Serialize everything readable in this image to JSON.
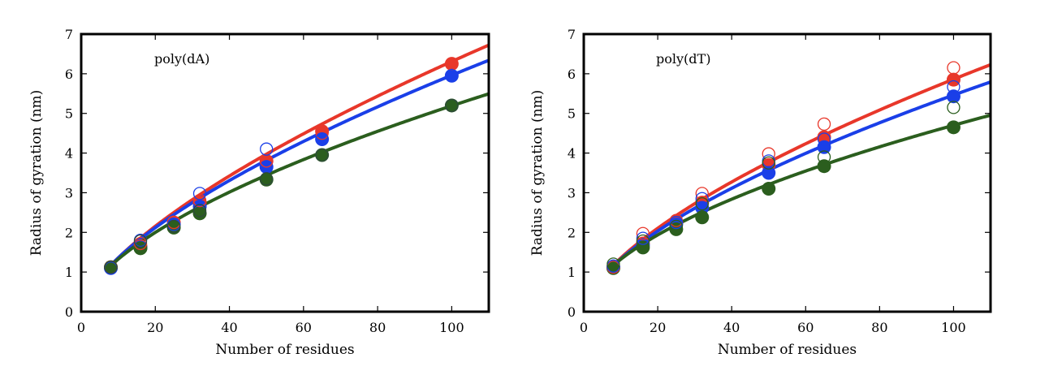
{
  "chart_data": [
    {
      "type": "scatter",
      "title": "poly(dA)",
      "xlabel": "Number of residues",
      "ylabel": "Radius of gyration (nm)",
      "xlim": [
        0,
        110
      ],
      "ylim": [
        0,
        7
      ],
      "xticks": [
        "0",
        "20",
        "40",
        "60",
        "80",
        "100"
      ],
      "yticks": [
        "0",
        "1",
        "2",
        "3",
        "4",
        "5",
        "6",
        "7"
      ],
      "x": [
        8,
        16,
        25,
        32,
        50,
        65,
        100
      ],
      "series": [
        {
          "name": "red filled",
          "color": "#e8372a",
          "marker": "filled",
          "values": [
            1.12,
            1.65,
            2.25,
            2.75,
            3.8,
            4.55,
            6.25
          ]
        },
        {
          "name": "blue filled",
          "color": "#1a3fe8",
          "marker": "filled",
          "values": [
            1.1,
            1.62,
            2.2,
            2.65,
            3.65,
            4.35,
            5.95
          ]
        },
        {
          "name": "green filled",
          "color": "#2b5e1e",
          "marker": "filled",
          "values": [
            1.12,
            1.6,
            2.12,
            2.48,
            3.33,
            3.95,
            5.2
          ]
        },
        {
          "name": "red open",
          "color": "#e8372a",
          "marker": "open",
          "values": [
            1.12,
            1.72,
            2.25,
            2.8,
            3.8,
            4.5,
            6.25
          ]
        },
        {
          "name": "blue open",
          "color": "#1a3fe8",
          "marker": "open",
          "values": [
            1.1,
            1.8,
            2.2,
            2.98,
            4.1,
            4.35,
            5.95
          ]
        },
        {
          "name": "dark open",
          "color": "#2d4a3a",
          "marker": "open",
          "values": [
            1.12,
            1.78,
            2.15,
            2.55,
            3.35,
            3.95,
            5.2
          ]
        }
      ],
      "fit_curves": [
        {
          "name": "red fit",
          "color": "#e8372a",
          "a": 0.2917,
          "nu": 0.6675
        },
        {
          "name": "blue fit",
          "color": "#1a3fe8",
          "a": 0.3086,
          "nu": 0.643
        },
        {
          "name": "green fit",
          "color": "#2b5e1e",
          "a": 0.338,
          "nu": 0.5932
        }
      ]
    },
    {
      "type": "scatter",
      "title": "poly(dT)",
      "xlabel": "Number of residues",
      "ylabel": "Radius of gyration (nm)",
      "xlim": [
        0,
        110
      ],
      "ylim": [
        0,
        7
      ],
      "xticks": [
        "0",
        "20",
        "40",
        "60",
        "80",
        "100"
      ],
      "yticks": [
        "0",
        "1",
        "2",
        "3",
        "4",
        "5",
        "6",
        "7"
      ],
      "x": [
        8,
        16,
        25,
        32,
        50,
        65,
        100
      ],
      "series": [
        {
          "name": "red filled",
          "color": "#e8372a",
          "marker": "filled",
          "values": [
            1.12,
            1.72,
            2.25,
            2.75,
            3.7,
            4.4,
            5.85
          ]
        },
        {
          "name": "blue filled",
          "color": "#1a3fe8",
          "marker": "filled",
          "values": [
            1.12,
            1.68,
            2.2,
            2.62,
            3.5,
            4.15,
            5.43
          ]
        },
        {
          "name": "green filled",
          "color": "#2b5e1e",
          "marker": "filled",
          "values": [
            1.1,
            1.62,
            2.08,
            2.38,
            3.1,
            3.67,
            4.65
          ]
        },
        {
          "name": "red open",
          "color": "#e8372a",
          "marker": "open",
          "values": [
            1.12,
            1.97,
            2.3,
            2.98,
            3.98,
            4.73,
            6.15
          ]
        },
        {
          "name": "blue open",
          "color": "#1a3fe8",
          "marker": "open",
          "values": [
            1.15,
            1.85,
            2.25,
            2.85,
            3.8,
            4.35,
            5.67
          ]
        },
        {
          "name": "green open",
          "color": "#2b5e1e",
          "marker": "open",
          "values": [
            1.2,
            1.78,
            2.15,
            2.72,
            3.75,
            3.9,
            5.15
          ]
        }
      ],
      "fit_curves": [
        {
          "name": "red fit",
          "color": "#e8372a",
          "a": 0.3122,
          "nu": 0.6368
        },
        {
          "name": "blue fit",
          "color": "#1a3fe8",
          "a": 0.323,
          "nu": 0.6141
        },
        {
          "name": "green fit",
          "color": "#2b5e1e",
          "a": 0.371,
          "nu": 0.5514
        }
      ]
    }
  ]
}
